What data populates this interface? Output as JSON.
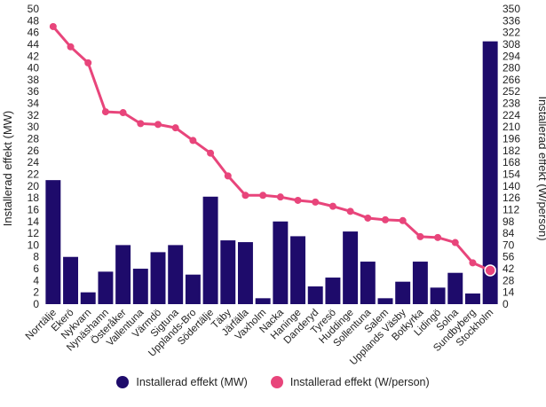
{
  "chart_data": {
    "type": "bar",
    "categories": [
      "Norrtälje",
      "Ekerö",
      "Nykvarn",
      "Nynäshamn",
      "Österåker",
      "Vallentuna",
      "Värmdö",
      "Sigtuna",
      "Upplands-Bro",
      "Södertälje",
      "Täby",
      "Järfälla",
      "Vaxholm",
      "Nacka",
      "Haninge",
      "Danderyd",
      "Tyresö",
      "Huddinge",
      "Sollentuna",
      "Salem",
      "Upplands Väsby",
      "Botkyrka",
      "Lidingö",
      "Solna",
      "Sundbyberg",
      "Stockholm"
    ],
    "series": [
      {
        "name": "Installerad effekt (MW)",
        "type": "bar",
        "axis": "left",
        "color": "#1e0b6b",
        "values": [
          21,
          8,
          2,
          5.5,
          10,
          6,
          8.8,
          10,
          5,
          18.2,
          10.8,
          10.5,
          1,
          14,
          11.5,
          3,
          4.5,
          12.3,
          7.2,
          1,
          3.8,
          7.2,
          2.8,
          5.3,
          1.8,
          44.5
        ]
      },
      {
        "name": "Installerad effekt (W/person)",
        "type": "line",
        "axis": "right",
        "color": "#e8457b",
        "values": [
          329,
          305,
          286,
          228,
          227,
          214,
          213,
          209,
          194,
          179,
          152,
          129,
          129,
          127,
          123,
          121,
          116,
          110,
          102,
          100,
          99,
          80,
          79,
          73,
          49,
          40
        ]
      }
    ],
    "y_left": {
      "label": "Installerad effekt (MW)",
      "ylim": [
        0,
        50
      ],
      "ticks": [
        "0",
        "2",
        "4",
        "6",
        "8",
        "10",
        "12",
        "14",
        "16",
        "18",
        "20",
        "22",
        "24",
        "26",
        "28",
        "30",
        "32",
        "34",
        "36",
        "38",
        "40",
        "42",
        "44",
        "46",
        "48",
        "50"
      ]
    },
    "y_right": {
      "label": "Installerad effekt (W/person)",
      "ylim": [
        0,
        350
      ],
      "ticks": [
        "0",
        "14",
        "28",
        "42",
        "56",
        "70",
        "84",
        "98",
        "112",
        "126",
        "140",
        "154",
        "168",
        "182",
        "196",
        "210",
        "224",
        "238",
        "252",
        "266",
        "280",
        "294",
        "308",
        "322",
        "336",
        "350"
      ]
    },
    "grid": false,
    "legend_position": "bottom"
  },
  "legend": {
    "items": [
      {
        "label": "Installerad effekt (MW)",
        "color": "#1e0b6b"
      },
      {
        "label": "Installerad effekt (W/person)",
        "color": "#e8457b"
      }
    ]
  }
}
